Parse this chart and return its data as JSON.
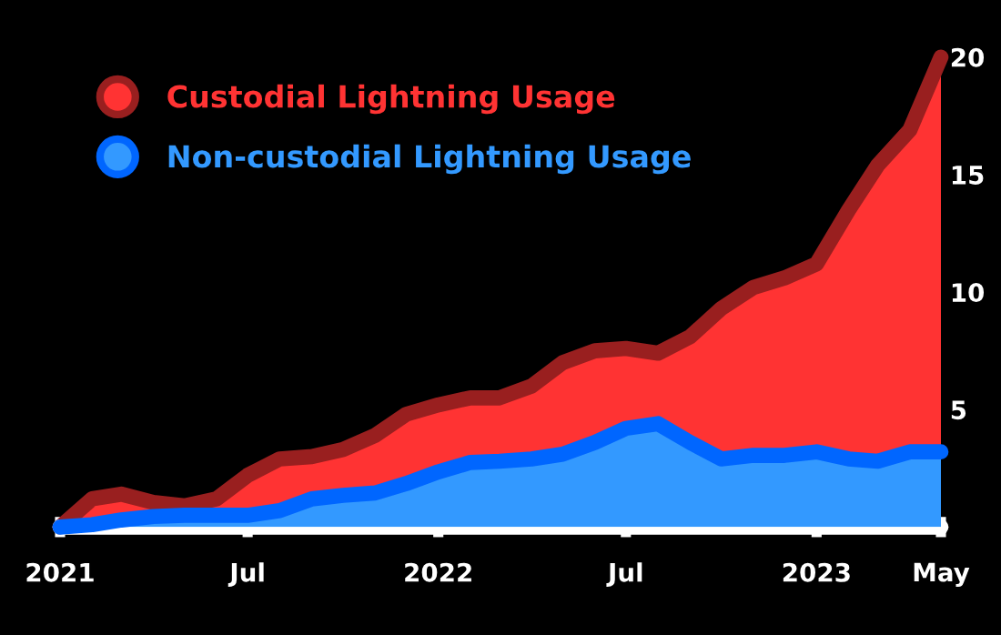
{
  "chart_data": {
    "type": "area",
    "x": [
      "2021-01",
      "2021-02",
      "2021-03",
      "2021-04",
      "2021-05",
      "2021-06",
      "2021-07",
      "2021-08",
      "2021-09",
      "2021-10",
      "2021-11",
      "2021-12",
      "2022-01",
      "2022-02",
      "2022-03",
      "2022-04",
      "2022-05",
      "2022-06",
      "2022-07",
      "2022-08",
      "2022-09",
      "2022-10",
      "2022-11",
      "2022-12",
      "2023-01",
      "2023-02",
      "2023-03",
      "2023-04",
      "2023-05"
    ],
    "series": [
      {
        "name": "Custodial Lightning Usage",
        "color": "#ff3333",
        "values": [
          0,
          1.2,
          1.4,
          1.05,
          0.9,
          1.2,
          2.2,
          2.9,
          3.0,
          3.3,
          3.9,
          4.8,
          5.2,
          5.5,
          5.5,
          6.0,
          7.0,
          7.5,
          7.6,
          7.4,
          8.1,
          9.3,
          10.2,
          10.6,
          11.2,
          13.5,
          15.4,
          16.9,
          20
        ]
      },
      {
        "name": "Non-custodial Lightning Usage",
        "color": "#3399ff",
        "values": [
          0,
          0.1,
          0.3,
          0.45,
          0.5,
          0.5,
          0.5,
          0.7,
          1.2,
          1.35,
          1.45,
          1.85,
          2.35,
          2.75,
          2.8,
          2.9,
          3.1,
          3.6,
          4.2,
          4.4,
          3.6,
          2.9,
          3.05,
          3.05,
          3.2,
          2.9,
          2.8,
          3.2,
          3.2
        ]
      }
    ],
    "xlim": [
      "2021-01",
      "2023-05"
    ],
    "xticks": [
      {
        "value": "2021-01",
        "label": "2021"
      },
      {
        "value": "2021-07",
        "label": "Jul"
      },
      {
        "value": "2022-01",
        "label": "2022"
      },
      {
        "value": "2022-07",
        "label": "Jul"
      },
      {
        "value": "2023-01",
        "label": "2023"
      },
      {
        "value": "2023-05",
        "label": "May"
      }
    ],
    "ylim": [
      0,
      20
    ],
    "yticks": [
      5,
      10,
      15,
      20
    ],
    "grid": false,
    "legend": "top left"
  }
}
